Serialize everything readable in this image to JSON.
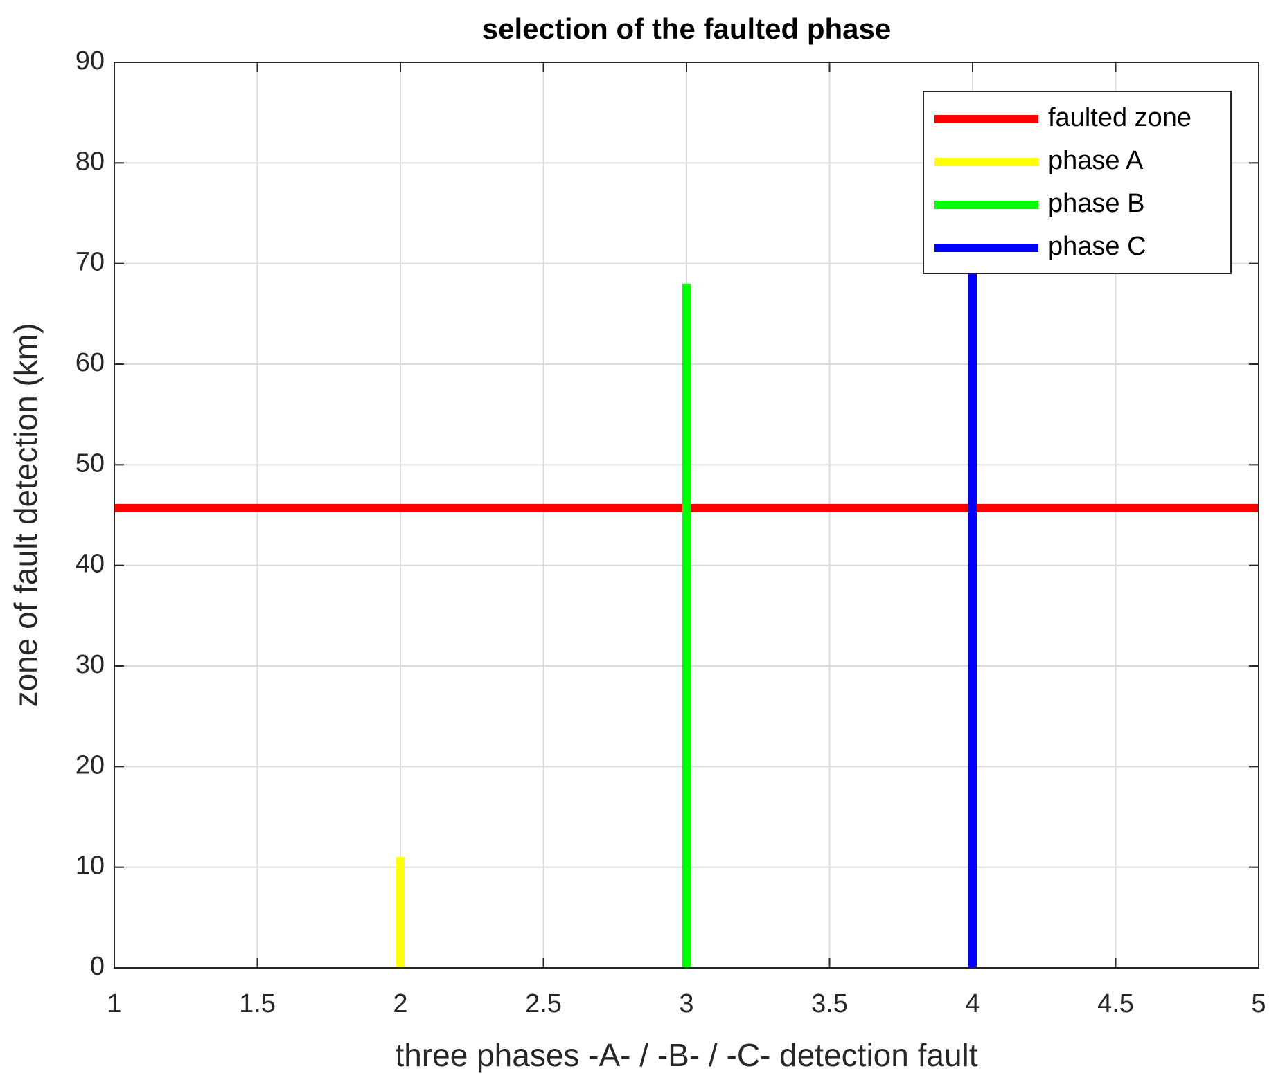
{
  "chart_data": {
    "type": "line",
    "title": "selection of the faulted phase",
    "x_label": "three phases -A- / -B- / -C- detection fault",
    "y_label": "zone of fault detection (km)",
    "series": [
      {
        "name": "faulted zone",
        "color": "#ff0000",
        "x": [
          1,
          5
        ],
        "values": [
          45.7,
          45.7
        ]
      },
      {
        "name": "phase A",
        "color": "#ffff00",
        "x": [
          2,
          2
        ],
        "values": [
          0,
          11
        ]
      },
      {
        "name": "phase B",
        "color": "#00ff00",
        "x": [
          3,
          3
        ],
        "values": [
          0,
          68
        ]
      },
      {
        "name": "phase C",
        "color": "#0000ff",
        "x": [
          4,
          4
        ],
        "values": [
          0,
          72
        ]
      }
    ],
    "xlim": [
      1,
      5
    ],
    "xticks": [
      1,
      1.5,
      2,
      2.5,
      3,
      3.5,
      4,
      4.5,
      5
    ],
    "ylim": [
      0,
      90
    ],
    "yticks": [
      0,
      10,
      20,
      30,
      40,
      50,
      60,
      70,
      80,
      90
    ],
    "grid": true,
    "legend_position": "upper right"
  }
}
